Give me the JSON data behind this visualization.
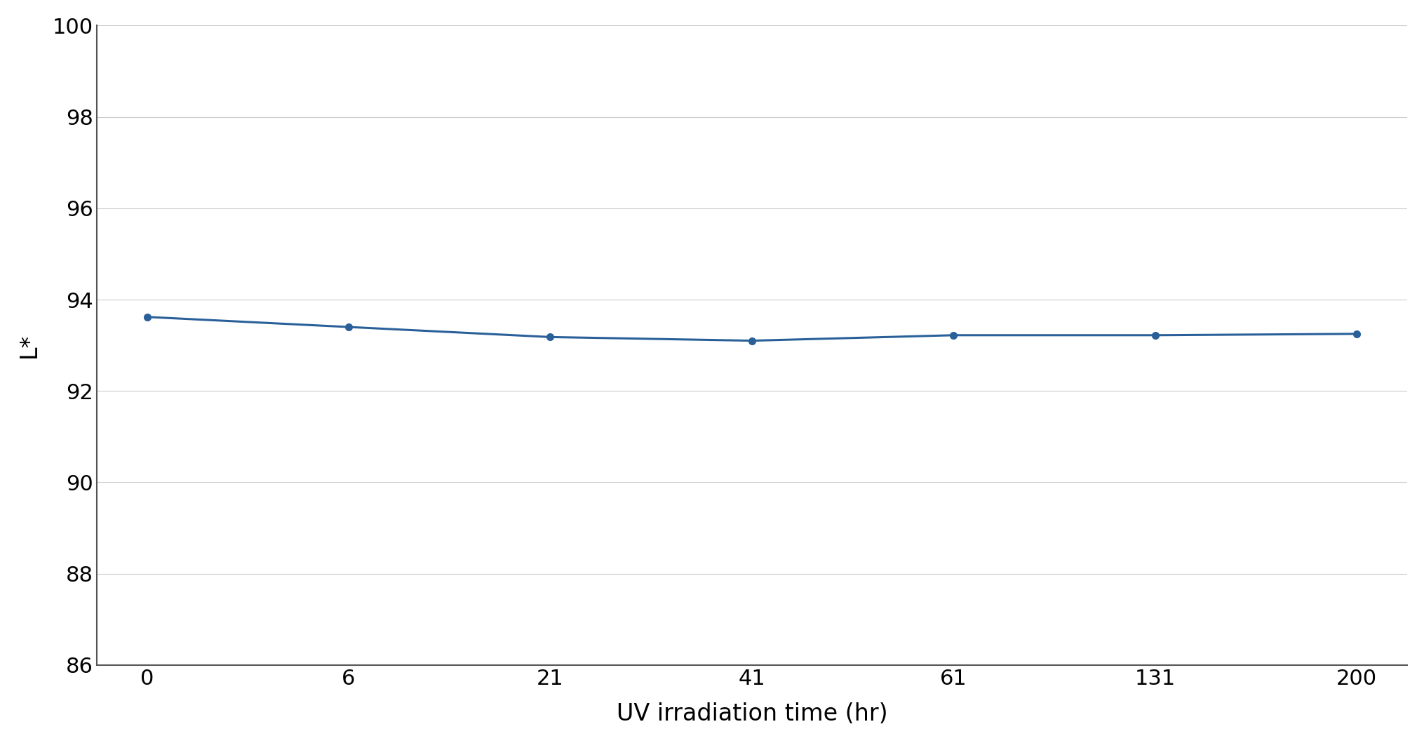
{
  "x_positions": [
    0,
    1,
    2,
    3,
    4,
    5,
    6
  ],
  "x_labels": [
    "0",
    "6",
    "21",
    "41",
    "61",
    "131",
    "200"
  ],
  "y": [
    93.62,
    93.4,
    93.18,
    93.1,
    93.22,
    93.22,
    93.25
  ],
  "line_color": "#2a6099",
  "marker": "o",
  "marker_size": 7,
  "linewidth": 2.2,
  "xlabel": "UV irradiation time (hr)",
  "ylabel": "L*",
  "ylim": [
    86,
    100
  ],
  "yticks": [
    86,
    88,
    90,
    92,
    94,
    96,
    98,
    100
  ],
  "xlabel_fontsize": 24,
  "ylabel_fontsize": 24,
  "tick_fontsize": 22,
  "grid_color": "#cccccc",
  "grid_linewidth": 0.8,
  "background_color": "#ffffff",
  "spine_color": "#555555",
  "xlim": [
    -0.25,
    6.25
  ]
}
